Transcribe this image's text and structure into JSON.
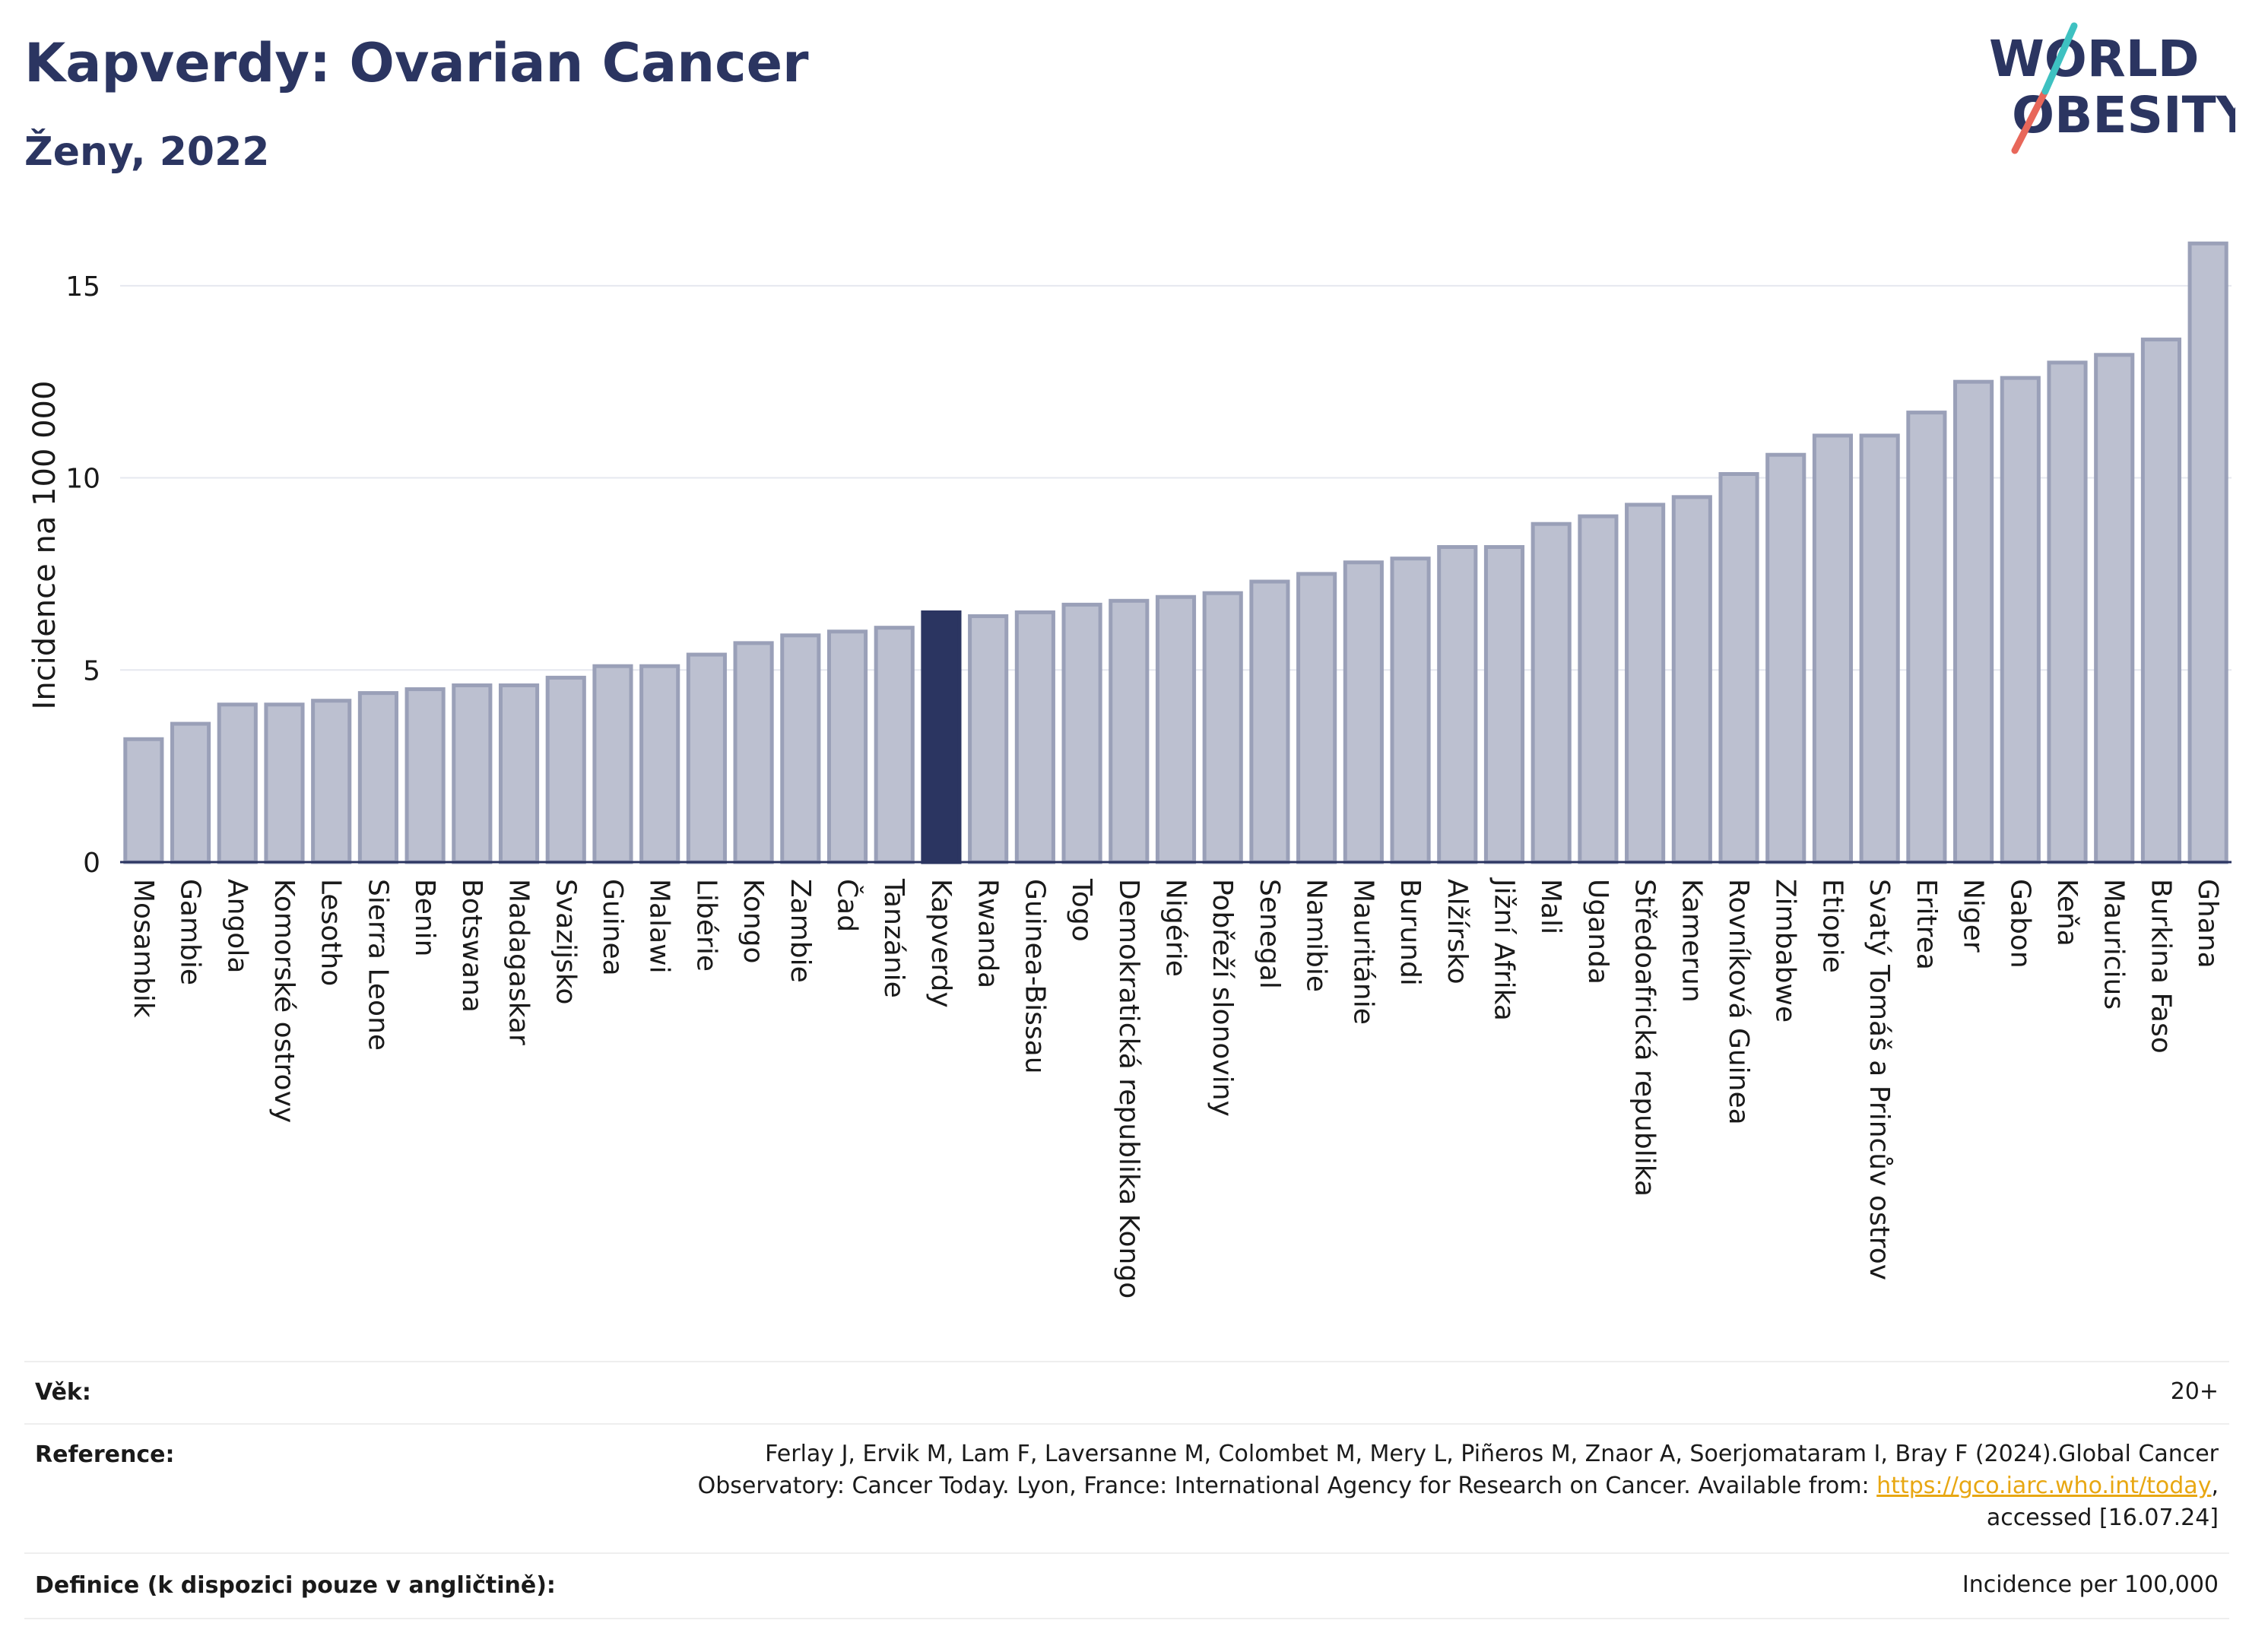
{
  "header": {
    "title": "Kapverdy: Ovarian Cancer",
    "subtitle": "Ženy, 2022"
  },
  "logo": {
    "line1": "WORLD",
    "line2": "OBESITY"
  },
  "colors": {
    "bar_fill": "#bcc0d0",
    "bar_stroke": "#9aa0b8",
    "highlight": "#2b3561",
    "link": "#e8a712"
  },
  "chart_data": {
    "type": "bar",
    "ylabel": "Incidence na 100 000",
    "xlabel": "",
    "ylim": [
      0,
      16.5
    ],
    "yticks": [
      0,
      5,
      10,
      15
    ],
    "grid": true,
    "highlight": "Kapverdy",
    "categories": [
      "Mosambik",
      "Gambie",
      "Angola",
      "Komorské ostrovy",
      "Lesotho",
      "Sierra Leone",
      "Benin",
      "Botswana",
      "Madagaskar",
      "Svazijsko",
      "Guinea",
      "Malawi",
      "Libérie",
      "Kongo",
      "Zambie",
      "Čad",
      "Tanzánie",
      "Kapverdy",
      "Rwanda",
      "Guinea-Bissau",
      "Togo",
      "Demokratická republika Kongo",
      "Nigérie",
      "Pobřeží slonoviny",
      "Senegal",
      "Namibie",
      "Mauritánie",
      "Burundi",
      "Alžírsko",
      "Jižní Afrika",
      "Mali",
      "Uganda",
      "Středoafrická republika",
      "Kamerun",
      "Rovníková Guinea",
      "Zimbabwe",
      "Etiopie",
      "Svatý Tomáš a Princův ostrov",
      "Eritrea",
      "Niger",
      "Gabon",
      "Keňa",
      "Mauricius",
      "Burkina Faso",
      "Ghana"
    ],
    "values": [
      3.2,
      3.6,
      4.1,
      4.1,
      4.2,
      4.4,
      4.5,
      4.6,
      4.6,
      4.8,
      5.1,
      5.1,
      5.4,
      5.7,
      5.9,
      6.0,
      6.1,
      6.5,
      6.4,
      6.5,
      6.7,
      6.8,
      6.9,
      7.0,
      7.3,
      7.5,
      7.8,
      7.9,
      8.2,
      8.2,
      8.8,
      9.0,
      9.3,
      9.5,
      10.1,
      10.6,
      11.1,
      11.1,
      11.7,
      12.5,
      12.6,
      13.0,
      13.2,
      13.6,
      16.1
    ]
  },
  "info": {
    "age_label": "Věk:",
    "age_value": "20+",
    "reference_label": "Reference:",
    "reference_line1": "Ferlay J, Ervik M, Lam F, Laversanne M, Colombet M, Mery L, Piñeros M, Znaor A, Soerjomataram I, Bray F (2024).Global Cancer",
    "reference_line2_prefix": "Observatory: Cancer Today. Lyon, France: International Agency for Research on Cancer. Available from: ",
    "reference_link": "https://gco.iarc.who.int/today",
    "reference_line2_suffix": ",",
    "reference_line3": "accessed [16.07.24]",
    "definition_label": "Definice (k dispozici pouze v angličtině):",
    "definition_value": "Incidence per 100,000"
  }
}
